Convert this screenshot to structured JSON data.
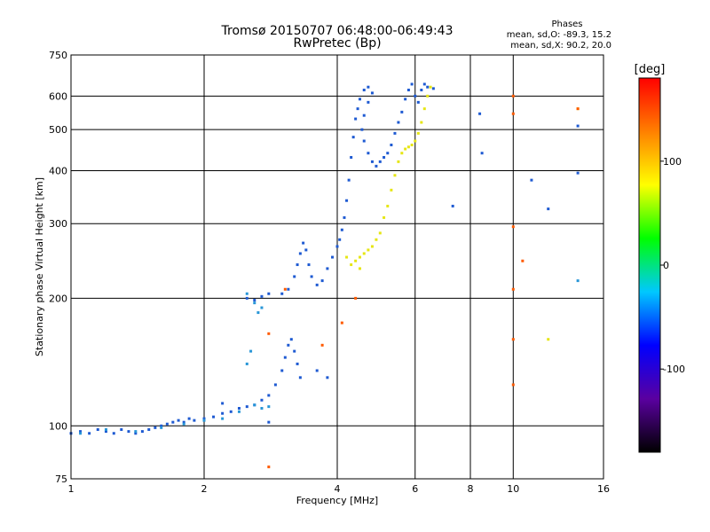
{
  "header": {
    "title": "Tromsø 20150707 06:48:00-06:49:43",
    "subtitle": "RwPretec (Bp)"
  },
  "phase_box": {
    "title": "Phases",
    "line_o": "mean, sd,O: -89.3, 15.2",
    "line_x": "mean, sd,X:  90.2, 20.0"
  },
  "colorbar": {
    "label": "[deg]",
    "range": [
      -180,
      180
    ],
    "ticks": [
      {
        "value": 100,
        "label": "100"
      },
      {
        "value": 0,
        "label": "0"
      },
      {
        "value": -100,
        "label": "-100"
      }
    ],
    "colors": [
      "#000000",
      "#5a00a0",
      "#0000ff",
      "#00c8ff",
      "#00ff00",
      "#ffff00",
      "#ff8000",
      "#ff0000"
    ]
  },
  "chart_data": {
    "type": "scatter",
    "xlabel": "Frequency [MHz]",
    "ylabel": "Stationary phase Virtual Height [km]",
    "xscale": "log",
    "yscale": "log",
    "xlim": [
      1,
      16
    ],
    "ylim": [
      75,
      750
    ],
    "xticks": [
      {
        "value": 1,
        "label": "1"
      },
      {
        "value": 2,
        "label": "2"
      },
      {
        "value": 4,
        "label": "4"
      },
      {
        "value": 6,
        "label": "6"
      },
      {
        "value": 8,
        "label": "8"
      },
      {
        "value": 10,
        "label": "10"
      },
      {
        "value": 16,
        "label": "16"
      }
    ],
    "yticks": [
      {
        "value": 75,
        "label": "75"
      },
      {
        "value": 100,
        "label": "100"
      },
      {
        "value": 200,
        "label": "200"
      },
      {
        "value": 300,
        "label": "300"
      },
      {
        "value": 400,
        "label": "400"
      },
      {
        "value": 500,
        "label": "500"
      },
      {
        "value": 600,
        "label": "600"
      },
      {
        "value": 750,
        "label": "750"
      }
    ],
    "grid": true,
    "series": [
      {
        "color": "#1e5ad2",
        "points": [
          [
            1.0,
            96
          ],
          [
            1.05,
            97
          ],
          [
            1.1,
            96
          ],
          [
            1.15,
            98
          ],
          [
            1.2,
            97
          ],
          [
            1.25,
            96
          ],
          [
            1.3,
            98
          ],
          [
            1.35,
            97
          ],
          [
            1.4,
            96
          ],
          [
            1.45,
            97
          ],
          [
            1.5,
            98
          ],
          [
            1.55,
            99
          ],
          [
            1.6,
            100
          ],
          [
            1.65,
            101
          ],
          [
            1.7,
            102
          ],
          [
            1.75,
            103
          ],
          [
            1.8,
            102
          ],
          [
            1.85,
            104
          ],
          [
            1.9,
            103
          ],
          [
            2.0,
            104
          ],
          [
            2.1,
            105
          ],
          [
            2.2,
            107
          ],
          [
            2.3,
            108
          ],
          [
            2.4,
            110
          ],
          [
            2.5,
            111
          ],
          [
            2.6,
            112
          ],
          [
            2.7,
            115
          ],
          [
            2.8,
            118
          ],
          [
            2.9,
            125
          ],
          [
            3.0,
            135
          ],
          [
            3.05,
            145
          ],
          [
            3.1,
            155
          ],
          [
            3.15,
            160
          ],
          [
            3.2,
            150
          ],
          [
            3.25,
            140
          ],
          [
            3.3,
            130
          ],
          [
            2.5,
            200
          ],
          [
            2.6,
            198
          ],
          [
            2.7,
            202
          ],
          [
            2.8,
            205
          ],
          [
            3.0,
            205
          ],
          [
            3.1,
            210
          ],
          [
            3.2,
            225
          ],
          [
            3.25,
            240
          ],
          [
            3.3,
            255
          ],
          [
            3.35,
            270
          ],
          [
            3.4,
            260
          ],
          [
            3.45,
            240
          ],
          [
            3.5,
            225
          ],
          [
            3.6,
            215
          ],
          [
            3.7,
            220
          ],
          [
            3.8,
            235
          ],
          [
            3.9,
            250
          ],
          [
            4.0,
            265
          ],
          [
            4.05,
            275
          ],
          [
            4.1,
            290
          ],
          [
            4.15,
            310
          ],
          [
            4.2,
            340
          ],
          [
            4.25,
            380
          ],
          [
            4.3,
            430
          ],
          [
            4.35,
            480
          ],
          [
            4.4,
            530
          ],
          [
            4.45,
            560
          ],
          [
            4.5,
            590
          ],
          [
            4.6,
            620
          ],
          [
            4.7,
            630
          ],
          [
            4.8,
            610
          ],
          [
            4.7,
            580
          ],
          [
            4.6,
            540
          ],
          [
            4.55,
            500
          ],
          [
            4.6,
            470
          ],
          [
            4.7,
            440
          ],
          [
            4.8,
            420
          ],
          [
            4.9,
            410
          ],
          [
            5.0,
            420
          ],
          [
            5.1,
            430
          ],
          [
            5.2,
            440
          ],
          [
            5.3,
            460
          ],
          [
            5.4,
            490
          ],
          [
            5.5,
            520
          ],
          [
            5.6,
            550
          ],
          [
            5.7,
            590
          ],
          [
            5.8,
            620
          ],
          [
            5.9,
            640
          ],
          [
            6.0,
            600
          ],
          [
            6.1,
            580
          ],
          [
            6.2,
            620
          ],
          [
            6.3,
            640
          ],
          [
            6.4,
            630
          ],
          [
            6.6,
            625
          ],
          [
            7.3,
            330
          ],
          [
            8.4,
            545
          ],
          [
            8.5,
            440
          ],
          [
            12.0,
            325
          ],
          [
            14.0,
            510
          ],
          [
            14.0,
            395
          ],
          [
            11.0,
            380
          ],
          [
            2.2,
            113
          ],
          [
            3.6,
            135
          ],
          [
            3.8,
            130
          ],
          [
            2.8,
            102
          ]
        ]
      },
      {
        "color": "#2896d7",
        "points": [
          [
            1.05,
            96
          ],
          [
            1.2,
            98
          ],
          [
            1.4,
            97
          ],
          [
            1.6,
            99
          ],
          [
            1.8,
            101
          ],
          [
            2.0,
            103
          ],
          [
            2.2,
            104
          ],
          [
            2.4,
            108
          ],
          [
            2.6,
            112
          ],
          [
            2.7,
            110
          ],
          [
            2.8,
            111
          ],
          [
            2.5,
            205
          ],
          [
            2.6,
            195
          ],
          [
            2.7,
            190
          ],
          [
            2.65,
            185
          ],
          [
            2.55,
            150
          ],
          [
            2.5,
            140
          ],
          [
            14.0,
            220
          ]
        ]
      },
      {
        "color": "#e6e614",
        "points": [
          [
            4.3,
            240
          ],
          [
            4.4,
            245
          ],
          [
            4.5,
            250
          ],
          [
            4.6,
            255
          ],
          [
            4.7,
            260
          ],
          [
            4.8,
            265
          ],
          [
            4.9,
            275
          ],
          [
            5.0,
            285
          ],
          [
            5.1,
            310
          ],
          [
            5.2,
            330
          ],
          [
            5.3,
            360
          ],
          [
            5.4,
            390
          ],
          [
            5.5,
            420
          ],
          [
            5.6,
            440
          ],
          [
            5.7,
            450
          ],
          [
            5.8,
            455
          ],
          [
            5.9,
            460
          ],
          [
            6.0,
            470
          ],
          [
            6.1,
            490
          ],
          [
            6.2,
            520
          ],
          [
            6.3,
            560
          ],
          [
            6.4,
            600
          ],
          [
            6.5,
            630
          ],
          [
            4.2,
            250
          ],
          [
            4.5,
            235
          ],
          [
            14.0,
            560
          ],
          [
            12.0,
            160
          ]
        ]
      },
      {
        "color": "#ff5a00",
        "points": [
          [
            2.8,
            80
          ],
          [
            2.8,
            165
          ],
          [
            3.05,
            210
          ],
          [
            3.7,
            155
          ],
          [
            4.1,
            175
          ],
          [
            4.4,
            200
          ],
          [
            10.0,
            600
          ],
          [
            10.0,
            545
          ],
          [
            10.0,
            295
          ],
          [
            10.0,
            210
          ],
          [
            10.0,
            160
          ],
          [
            10.0,
            125
          ],
          [
            10.5,
            245
          ],
          [
            14.0,
            560
          ]
        ]
      }
    ]
  }
}
